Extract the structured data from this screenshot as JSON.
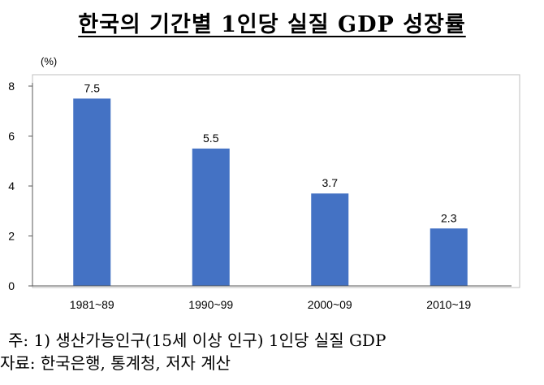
{
  "header": {
    "title": "한국의 기간별 1인당 실질 GDP 성장률"
  },
  "colors": {
    "bar": "#4472C4",
    "axis": "#595959",
    "frame": "#BFBFBF"
  },
  "chart_data": {
    "type": "bar",
    "unit_label": "(%)",
    "categories": [
      "1981~89",
      "1990~99",
      "2000~09",
      "2010~19"
    ],
    "values": [
      7.5,
      5.5,
      3.7,
      2.3
    ],
    "data_labels": [
      "7.5",
      "5.5",
      "3.7",
      "2.3"
    ],
    "yticks": [
      0,
      2,
      4,
      6,
      8
    ],
    "ylim": [
      0,
      8
    ],
    "grid": false
  },
  "notes": {
    "note1": "주: 1) 생산가능인구(15세 이상 인구) 1인당 실질 GDP",
    "note2": "자료: 한국은행, 통계청, 저자 계산"
  }
}
